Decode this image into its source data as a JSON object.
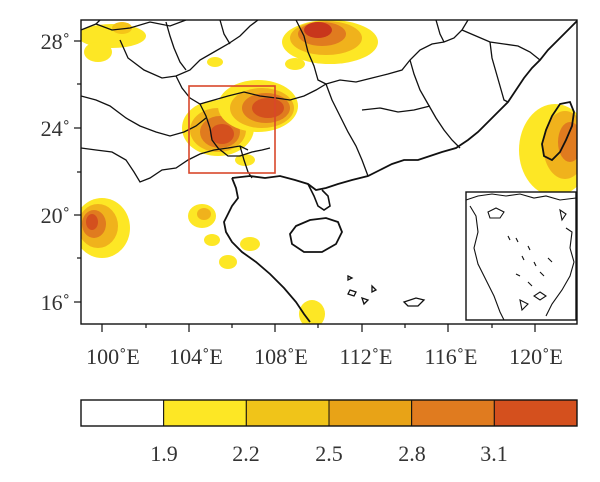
{
  "map": {
    "lat_ticks": [
      "28˚",
      "24˚",
      "20˚",
      "16˚"
    ],
    "lon_ticks": [
      "100˚E",
      "104˚E",
      "108˚E",
      "112˚E",
      "116˚E",
      "120˚E"
    ],
    "highlight_box_color": "#d9472b"
  },
  "colorbar": {
    "levels": [
      "1.9",
      "2.2",
      "2.5",
      "2.8",
      "3.1"
    ],
    "colors": [
      "#ffffff",
      "#fde725",
      "#f5c518",
      "#e8a317",
      "#e07b1f",
      "#d4501e",
      "#c8361c"
    ]
  }
}
